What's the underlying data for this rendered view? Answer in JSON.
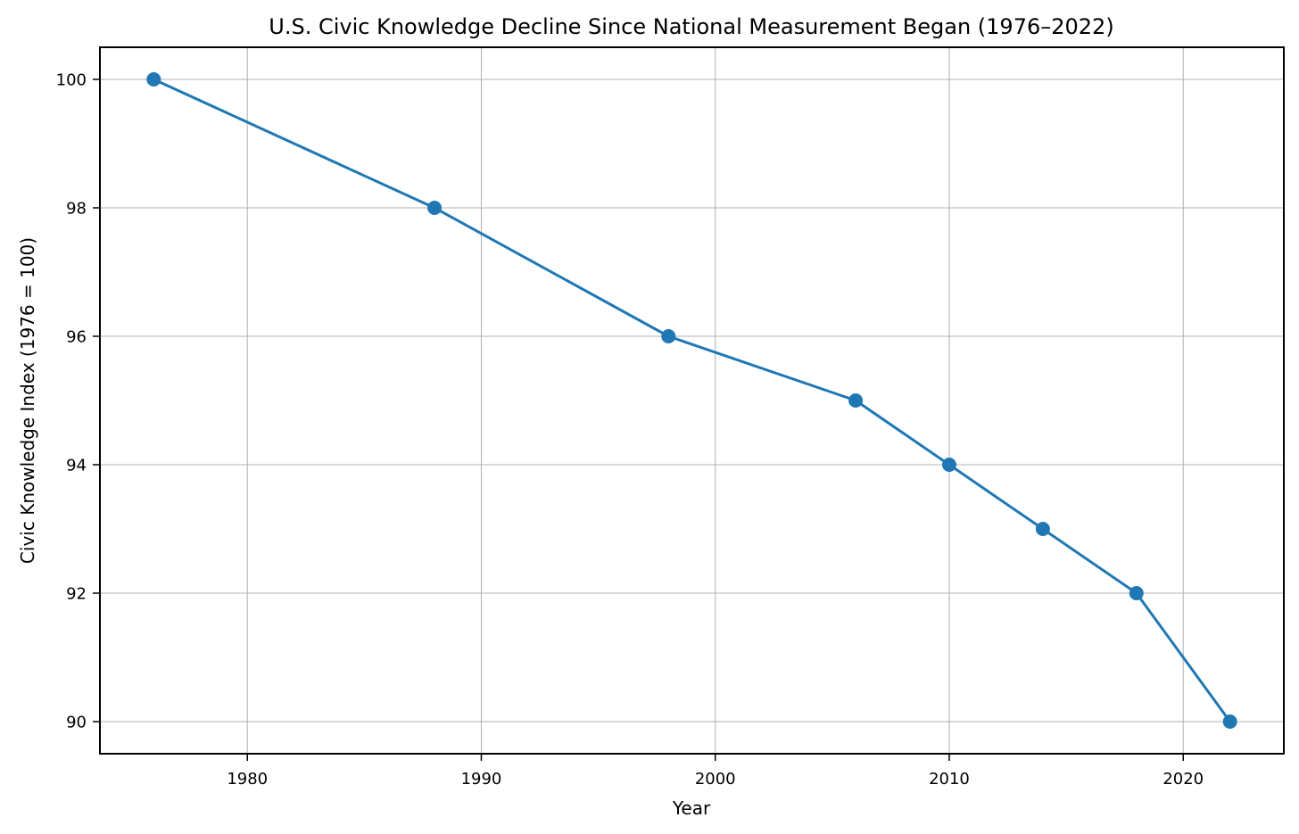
{
  "page": {
    "background": "#ffffff"
  },
  "chart_data": {
    "type": "line",
    "title": "U.S. Civic Knowledge Decline Since National Measurement Began (1976–2022)",
    "xlabel": "Year",
    "ylabel": "Civic Knowledge Index (1976 = 100)",
    "series": [
      {
        "name": "Civic Knowledge Index",
        "x": [
          1976,
          1988,
          1998,
          2006,
          2010,
          2014,
          2018,
          2022
        ],
        "y": [
          100,
          98,
          96,
          95,
          94,
          93,
          92,
          90
        ]
      }
    ],
    "xlim": [
      1973.7,
      2024.3
    ],
    "ylim": [
      89.5,
      100.5
    ],
    "xticks": [
      1980,
      1990,
      2000,
      2010,
      2020
    ],
    "yticks": [
      90,
      92,
      94,
      96,
      98,
      100
    ],
    "grid": true,
    "legend_position": "none",
    "line_color": "#1f77b4",
    "marker": "circle",
    "marker_color": "#1f77b4",
    "grid_color": "#b0b0b0",
    "axis_color": "#000000"
  }
}
